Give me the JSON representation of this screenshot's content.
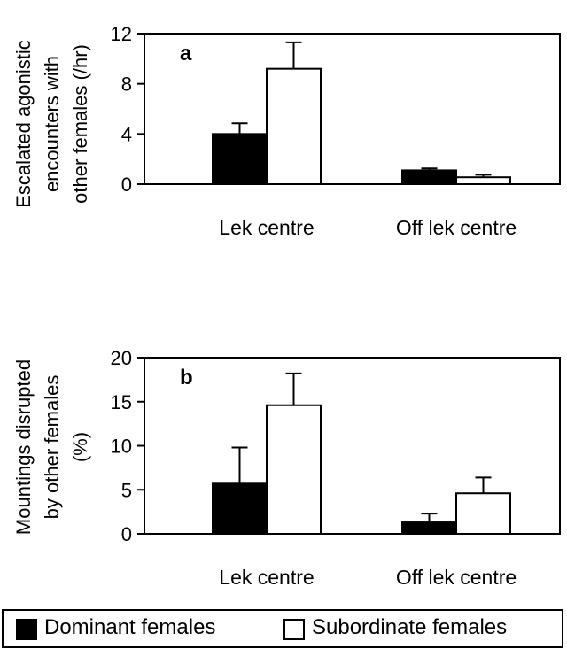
{
  "chart_data": [
    {
      "type": "bar",
      "panel_label": "a",
      "ylabel": [
        "Escalated agonistic",
        "encounters with",
        "other females (/hr)"
      ],
      "categories": [
        "Lek centre",
        "Off lek centre"
      ],
      "ylim": [
        0,
        12
      ],
      "yticks": [
        0,
        4,
        8,
        12
      ],
      "series": [
        {
          "name": "Dominant females",
          "color": "#000000",
          "values": [
            4.0,
            1.1
          ],
          "errors": [
            0.85,
            0.15
          ]
        },
        {
          "name": "Subordinate females",
          "color": "#ffffff",
          "values": [
            9.2,
            0.55
          ],
          "errors": [
            2.1,
            0.2
          ]
        }
      ]
    },
    {
      "type": "bar",
      "panel_label": "b",
      "ylabel": [
        "Mountings disrupted",
        "by other females",
        "(%)"
      ],
      "categories": [
        "Lek centre",
        "Off lek centre"
      ],
      "ylim": [
        0,
        20
      ],
      "yticks": [
        0,
        5,
        10,
        15,
        20
      ],
      "series": [
        {
          "name": "Dominant females",
          "color": "#000000",
          "values": [
            5.7,
            1.3
          ],
          "errors": [
            4.1,
            1.0
          ]
        },
        {
          "name": "Subordinate females",
          "color": "#ffffff",
          "values": [
            14.6,
            4.6
          ],
          "errors": [
            3.6,
            1.8
          ]
        }
      ]
    }
  ],
  "legend": {
    "placement": "bottom",
    "items": [
      {
        "label": "Dominant females",
        "color": "#000000"
      },
      {
        "label": "Subordinate females",
        "color": "#ffffff"
      }
    ]
  }
}
